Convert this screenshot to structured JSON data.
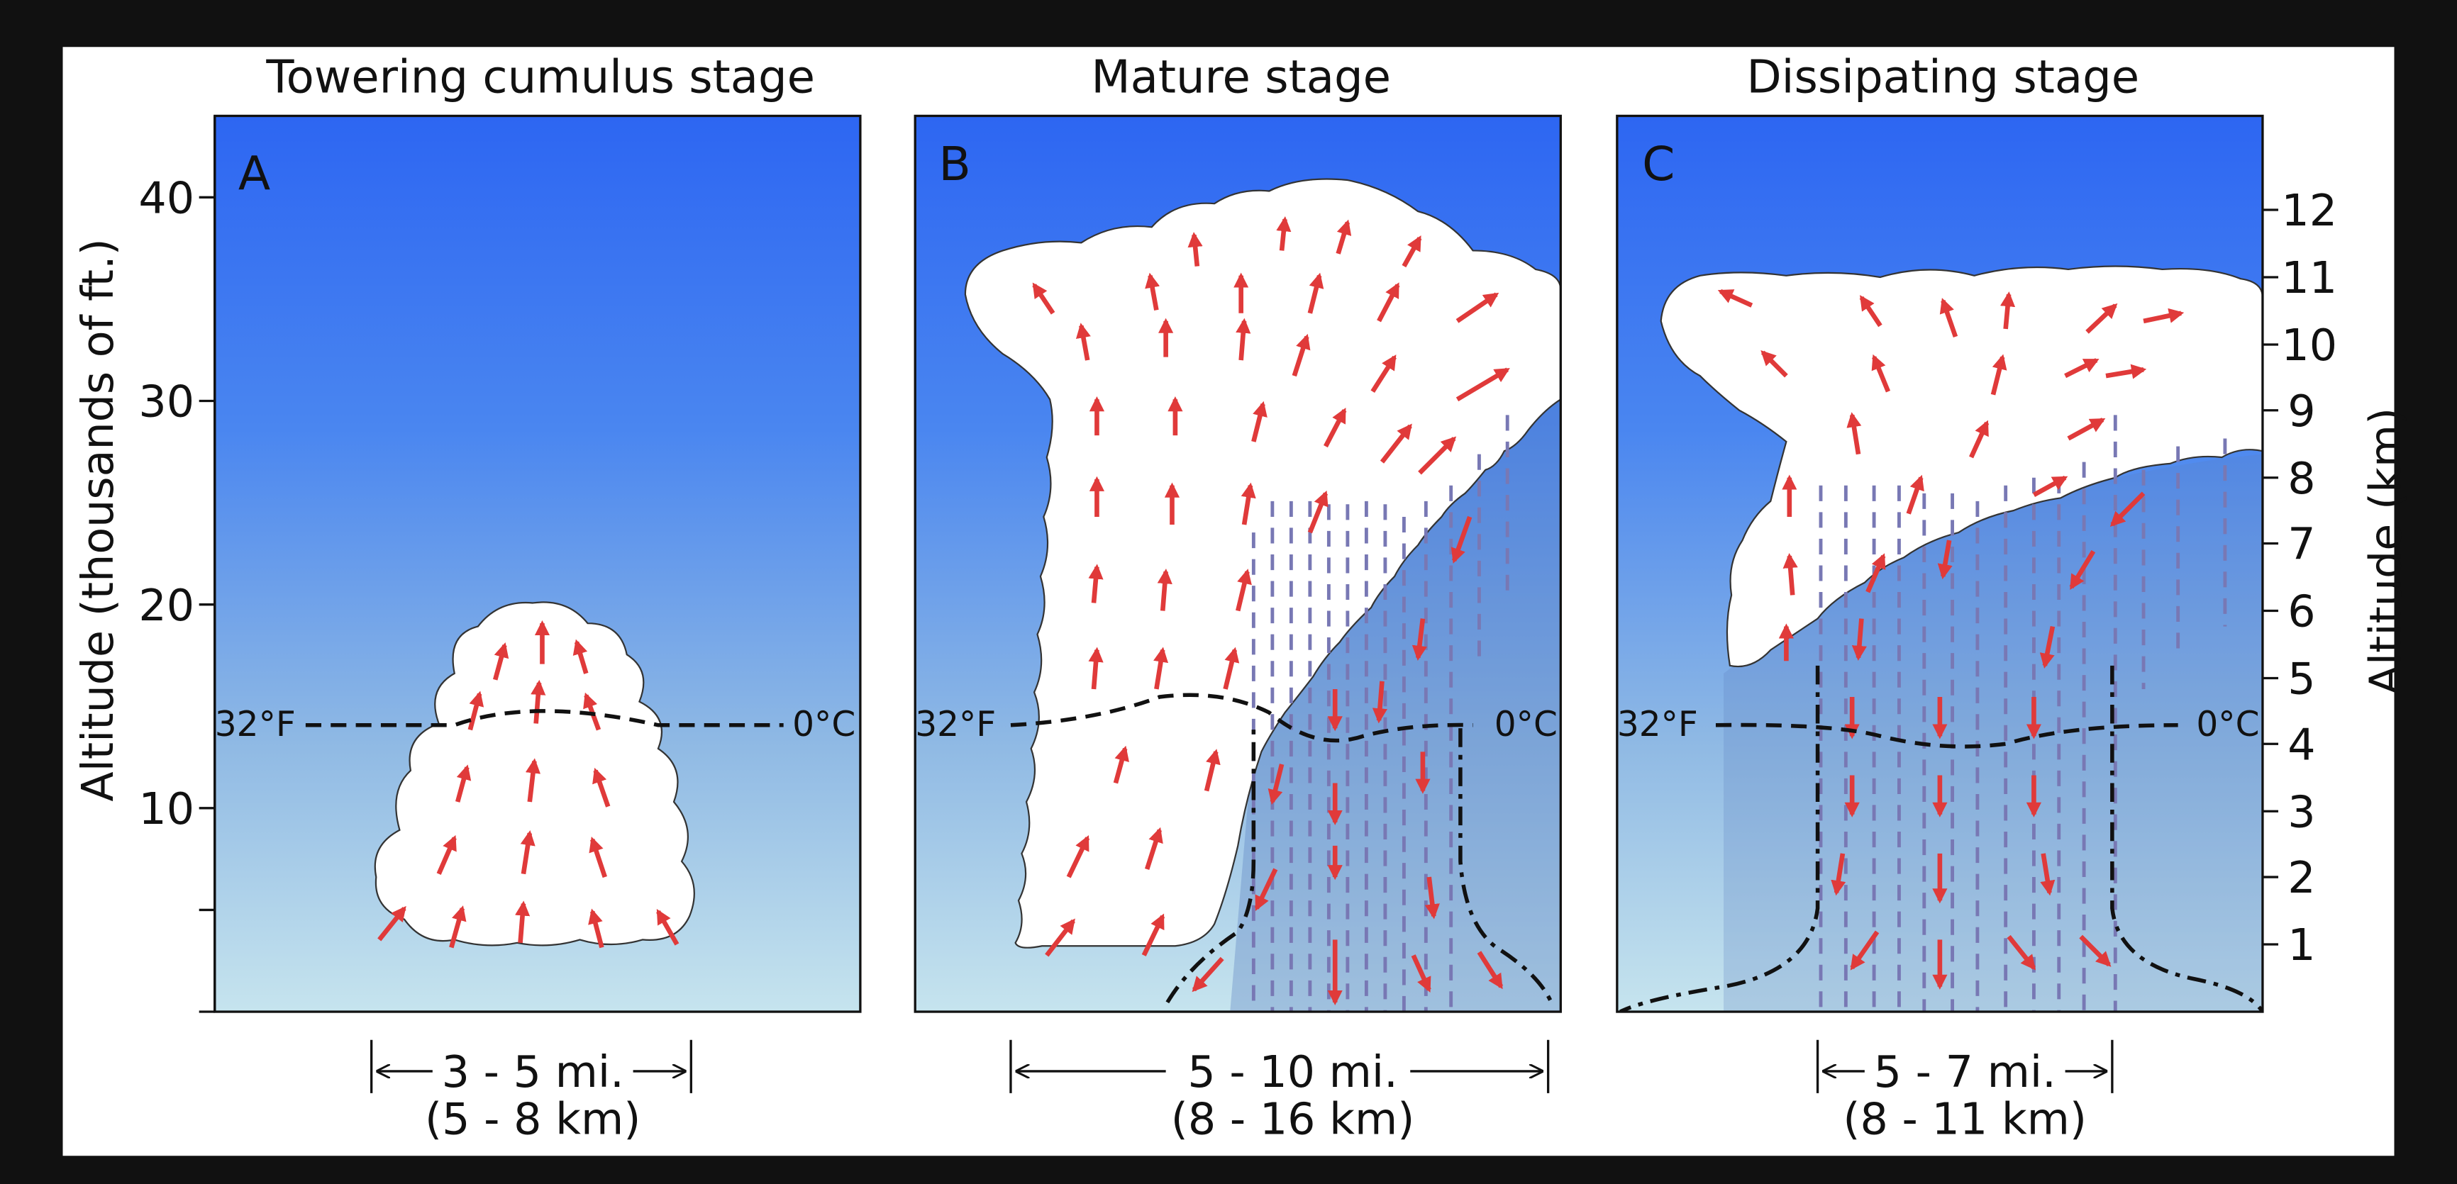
{
  "panels": [
    {
      "letter": "A",
      "title": "Towering cumulus stage",
      "width_mi": "3 - 5 mi.",
      "width_km": "(5 - 8 km)"
    },
    {
      "letter": "B",
      "title": "Mature stage",
      "width_mi": "5 - 10 mi.",
      "width_km": "(8 - 16 km)"
    },
    {
      "letter": "C",
      "title": "Dissipating stage",
      "width_mi": "5 - 7 mi.",
      "width_km": "(8 - 11 km)"
    }
  ],
  "freezing_level": {
    "left_label": "32°F",
    "right_label": "0°C"
  },
  "left_axis": {
    "label": "Altitude (thousands of ft.)",
    "ticks": [
      "10",
      "20",
      "30",
      "40"
    ]
  },
  "right_axis": {
    "label": "Altitude (km)",
    "ticks": [
      "1",
      "2",
      "3",
      "4",
      "5",
      "6",
      "7",
      "8",
      "9",
      "10",
      "11",
      "12"
    ]
  },
  "colors": {
    "sky_top": "#2d66f2",
    "sky_bottom": "#c6e4ee",
    "cloud": "#ffffff",
    "arrow": "#e03a3a",
    "rain": "#7878b4",
    "frame": "#111111"
  }
}
